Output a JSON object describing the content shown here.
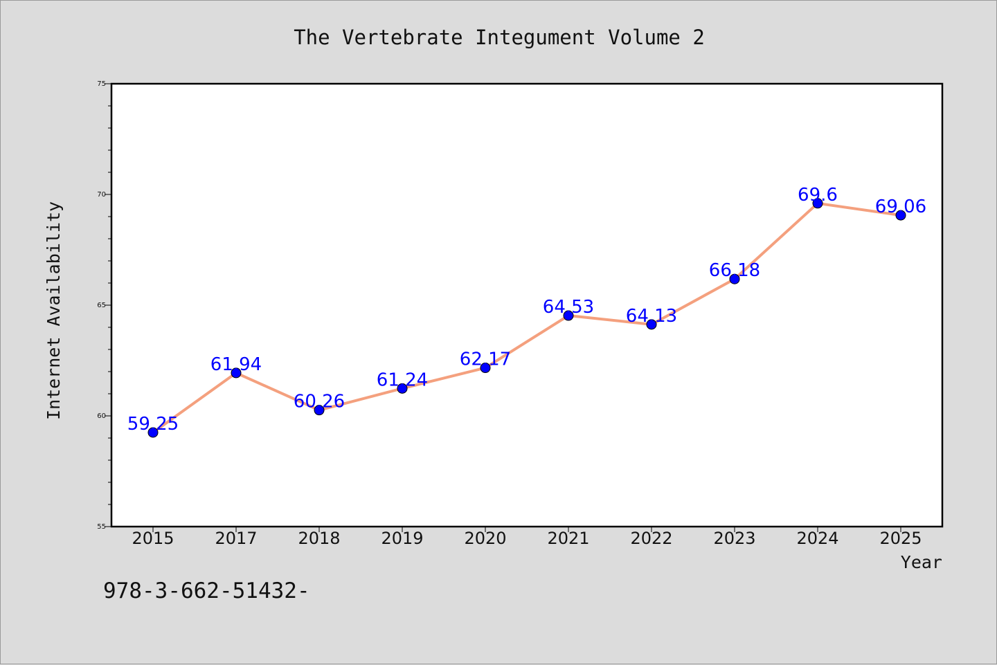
{
  "chart_data": {
    "type": "line",
    "title": "The Vertebrate Integument Volume 2",
    "xlabel": "Year",
    "ylabel": "Internet Availability",
    "categories": [
      "2015",
      "2017",
      "2018",
      "2019",
      "2020",
      "2021",
      "2022",
      "2023",
      "2024",
      "2025"
    ],
    "series": [
      {
        "values": [
          59.25,
          61.94,
          60.26,
          61.24,
          62.17,
          64.53,
          64.13,
          66.18,
          69.6,
          69.06
        ],
        "data_labels": [
          "59.25",
          "61.94",
          "60.26",
          "61.24",
          "62.17",
          "64.53",
          "64.13",
          "66.18",
          "69.6",
          "69.06"
        ],
        "line_color": "#f4a07e",
        "marker_color": "#0000ff"
      }
    ],
    "ylim": [
      55,
      75
    ],
    "yticks": [
      "55",
      "60",
      "65",
      "70",
      "75"
    ],
    "grid": false,
    "legend": "none"
  },
  "footer_text": "978-3-662-51432-"
}
